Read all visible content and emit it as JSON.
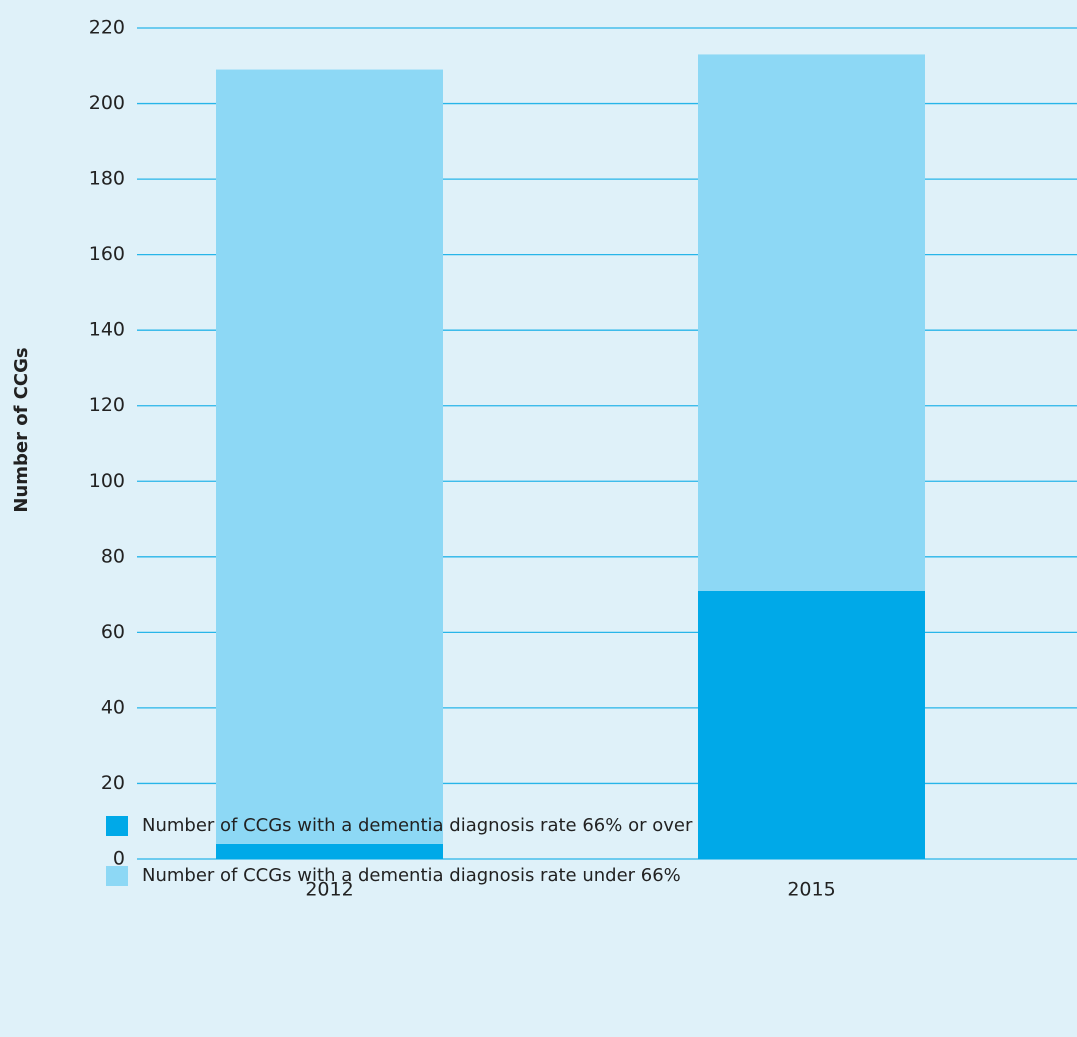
{
  "chart_data": {
    "type": "stacked_bar",
    "y_label": "Number of CCGs",
    "categories": [
      "2012",
      "2015"
    ],
    "series": [
      {
        "name": "Number of CCGs with a dementia diagnosis rate 66% or over",
        "color": "#00a9e8",
        "values": [
          4,
          71
        ]
      },
      {
        "name": "Number of CCGs with a dementia diagnosis rate under 66%",
        "color": "#8dd8f5",
        "values": [
          205,
          142
        ]
      }
    ],
    "ylim": [
      0,
      220
    ],
    "yticks": [
      0,
      20,
      40,
      60,
      80,
      100,
      120,
      140,
      160,
      180,
      200,
      220
    ],
    "grid": true
  }
}
